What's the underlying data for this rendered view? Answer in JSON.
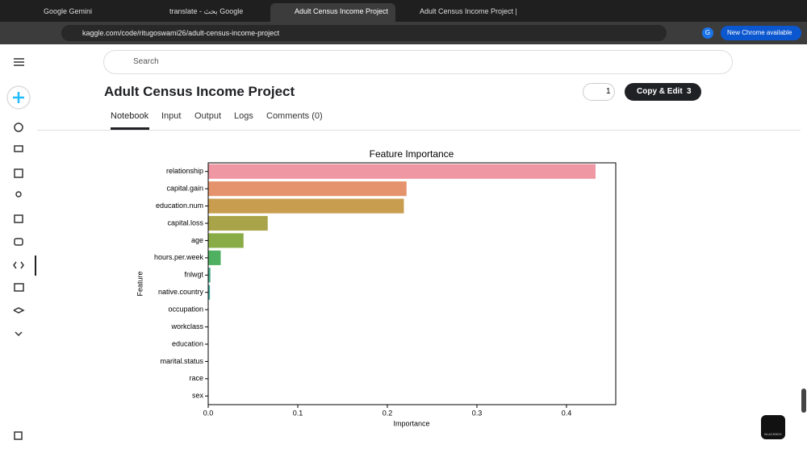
{
  "browser": {
    "tabs": [
      "Google Gemini",
      "translate - بحث Google",
      "Adult Census Income Project",
      "Adult Census Income Project | K"
    ],
    "url": "kaggle.com/code/ritugoswami26/adult-census-income-project",
    "profile": "G",
    "update": "New Chrome available"
  },
  "header": {
    "search": "Search",
    "title": "Adult Census Income Project",
    "votes": 1,
    "copy_edit": "Copy & Edit",
    "copies": 3
  },
  "notebook_tabs": [
    "Notebook",
    "Input",
    "Output",
    "Logs",
    "Comments (0)"
  ],
  "badge": "BLACKBOX",
  "chart_data": {
    "type": "barh",
    "title": "Feature Importance",
    "x_label": "Importance",
    "y_label": "Feature",
    "categories": [
      "relationship",
      "capital.gain",
      "education.num",
      "capital.loss",
      "age",
      "hours.per.week",
      "fnlwgt",
      "native.country",
      "occupation",
      "workclass",
      "education",
      "marital.status",
      "race",
      "sex"
    ],
    "values": [
      0.432,
      0.221,
      0.218,
      0.066,
      0.039,
      0.0135,
      0.002,
      0.0015,
      0,
      0,
      0,
      0,
      0,
      0
    ],
    "colors": [
      "#ef97a3",
      "#e5936c",
      "#c99d4f",
      "#a9a449",
      "#8aac46",
      "#4fb061",
      "#48ad8c",
      "#46aaa0",
      "#47a8b4",
      "#4aa5c8",
      "#7c9ee0",
      "#ad92e4",
      "#d685dc",
      "#ec86b8"
    ],
    "xlim": [
      0,
      0.455
    ],
    "xticks": [
      {
        "value": 0,
        "label": "0.0"
      },
      0.1,
      0.2,
      0.3,
      0.4
    ]
  }
}
